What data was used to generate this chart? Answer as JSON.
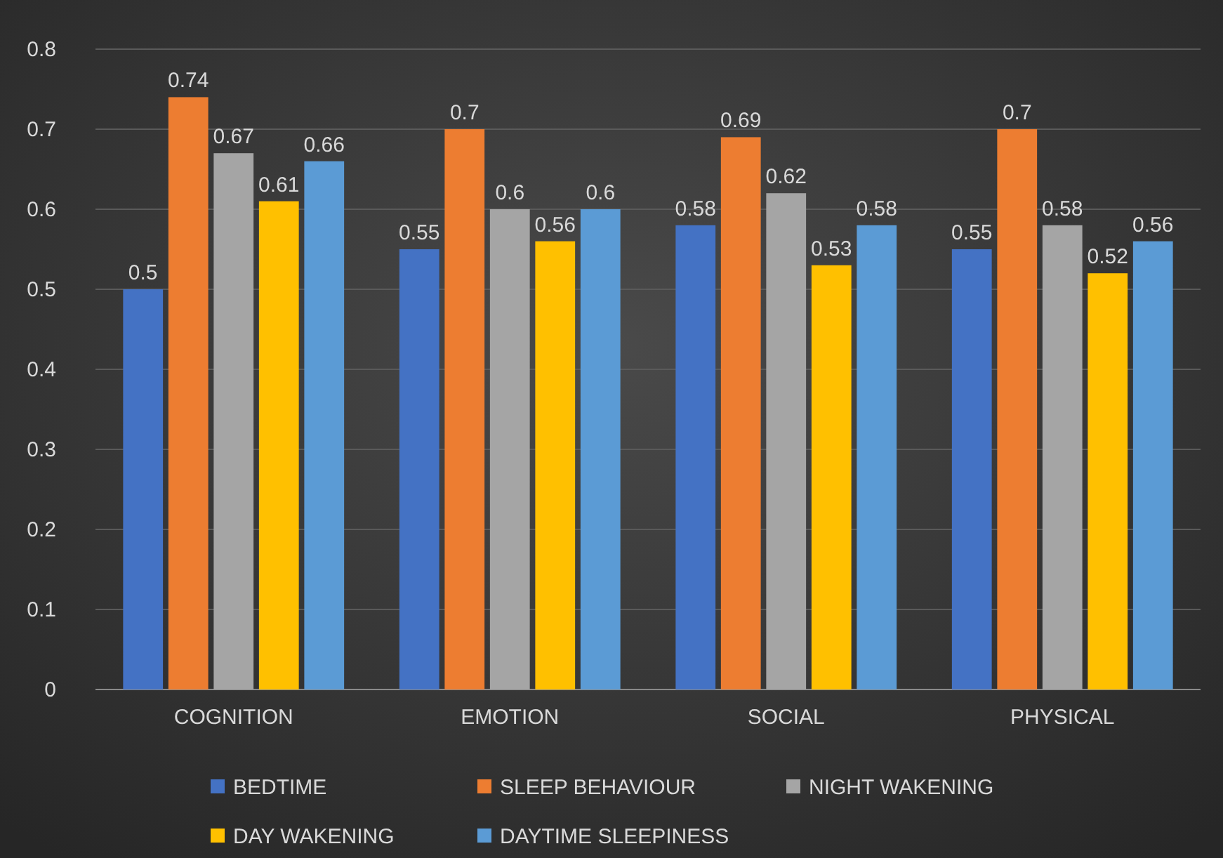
{
  "chart_data": {
    "type": "bar",
    "categories": [
      "COGNITION",
      "EMOTION",
      "SOCIAL",
      "PHYSICAL"
    ],
    "series": [
      {
        "name": "BEDTIME",
        "color": "#4472c4",
        "values": [
          0.5,
          0.55,
          0.58,
          0.55
        ]
      },
      {
        "name": "SLEEP BEHAVIOUR",
        "color": "#ed7d31",
        "values": [
          0.74,
          0.7,
          0.69,
          0.7
        ]
      },
      {
        "name": "NIGHT WAKENING",
        "color": "#a5a5a5",
        "values": [
          0.67,
          0.6,
          0.62,
          0.58
        ]
      },
      {
        "name": "DAY WAKENING",
        "color": "#ffc000",
        "values": [
          0.61,
          0.56,
          0.53,
          0.52
        ]
      },
      {
        "name": "DAYTIME SLEEPINESS",
        "color": "#5b9bd5",
        "values": [
          0.66,
          0.6,
          0.58,
          0.56
        ]
      }
    ],
    "ylim": [
      0,
      0.8
    ],
    "yticks": [
      0,
      0.1,
      0.2,
      0.3,
      0.4,
      0.5,
      0.6,
      0.7,
      0.8
    ],
    "grid": "y",
    "data_labels": true,
    "legend": "bottom"
  }
}
